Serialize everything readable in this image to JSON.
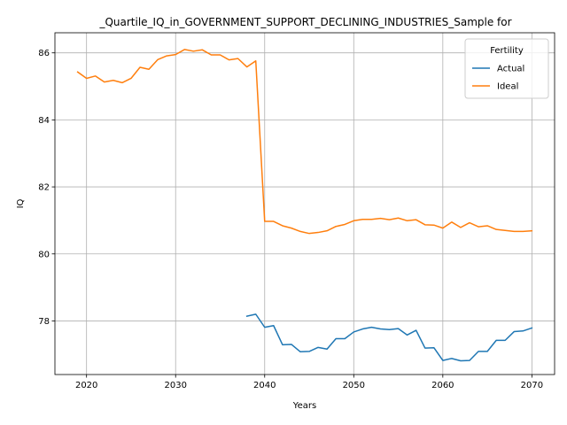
{
  "chart_data": {
    "type": "line",
    "title": "_Quartile_IQ_in_GOVERNMENT_SUPPORT_DECLINING_INDUSTRIES_Sample for",
    "xlabel": "Years",
    "ylabel": "IQ",
    "xlim": [
      2016.45,
      2072.55
    ],
    "ylim": [
      76.4,
      86.6
    ],
    "xticks": [
      2020,
      2030,
      2040,
      2050,
      2060,
      2070
    ],
    "yticks": [
      78,
      80,
      82,
      84,
      86
    ],
    "grid": true,
    "legend": {
      "title": "Fertility",
      "placement": "top-right"
    },
    "series": [
      {
        "name": "Actual",
        "color": "#1f77b4",
        "x": [
          2038,
          2039,
          2040,
          2041,
          2042,
          2043,
          2044,
          2045,
          2046,
          2047,
          2048,
          2049,
          2050,
          2051,
          2052,
          2053,
          2054,
          2055,
          2056,
          2057,
          2058,
          2059,
          2060,
          2061,
          2062,
          2063,
          2064,
          2065,
          2066,
          2067,
          2068,
          2069,
          2070
        ],
        "values": [
          78.14,
          78.2,
          77.81,
          77.86,
          77.29,
          77.3,
          77.08,
          77.09,
          77.21,
          77.16,
          77.47,
          77.47,
          77.67,
          77.76,
          77.81,
          77.76,
          77.74,
          77.77,
          77.58,
          77.72,
          77.19,
          77.2,
          76.82,
          76.88,
          76.81,
          76.82,
          77.09,
          77.09,
          77.42,
          77.42,
          77.68,
          77.7,
          77.79
        ]
      },
      {
        "name": "Ideal",
        "color": "#ff7f0e",
        "x": [
          2019,
          2020,
          2021,
          2022,
          2023,
          2024,
          2025,
          2026,
          2027,
          2028,
          2029,
          2030,
          2031,
          2032,
          2033,
          2034,
          2035,
          2036,
          2037,
          2038,
          2039,
          2040,
          2041,
          2042,
          2043,
          2044,
          2045,
          2046,
          2047,
          2048,
          2049,
          2050,
          2051,
          2052,
          2053,
          2054,
          2055,
          2056,
          2057,
          2058,
          2059,
          2060,
          2061,
          2062,
          2063,
          2064,
          2065,
          2066,
          2067,
          2068,
          2069,
          2070
        ],
        "values": [
          85.43,
          85.24,
          85.31,
          85.13,
          85.18,
          85.11,
          85.24,
          85.57,
          85.51,
          85.8,
          85.91,
          85.95,
          86.1,
          86.05,
          86.09,
          85.94,
          85.94,
          85.79,
          85.83,
          85.58,
          85.76,
          80.97,
          80.97,
          80.84,
          80.77,
          80.67,
          80.61,
          80.64,
          80.69,
          80.82,
          80.88,
          80.99,
          81.03,
          81.03,
          81.06,
          81.02,
          81.07,
          80.99,
          81.02,
          80.87,
          80.86,
          80.77,
          80.95,
          80.79,
          80.93,
          80.81,
          80.84,
          80.73,
          80.7,
          80.67,
          80.67,
          80.69
        ]
      }
    ]
  }
}
